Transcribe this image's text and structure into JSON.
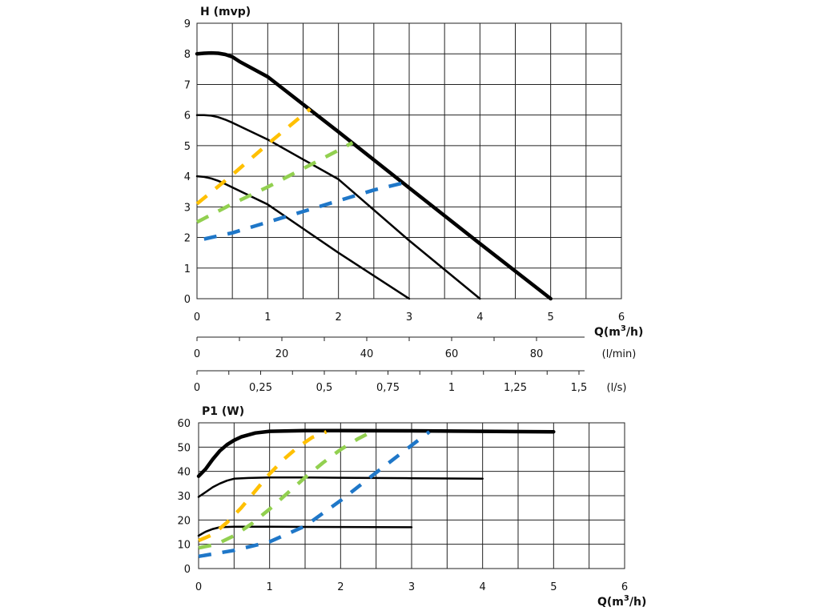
{
  "chart_data": [
    {
      "type": "line",
      "ylabel": "H (mvp)",
      "xlabel_prefix": "Q(m",
      "xlabel_sup": "3",
      "xlabel_suffix": "/h)",
      "xlim": [
        0,
        6
      ],
      "ylim": [
        0,
        9
      ],
      "x_ticks": [
        "0",
        "1",
        "2",
        "3",
        "4",
        "5",
        "6"
      ],
      "y_ticks": [
        "0",
        "1",
        "2",
        "3",
        "4",
        "5",
        "6",
        "7",
        "8",
        "9"
      ],
      "grid": true,
      "secondary_axes": [
        {
          "unit": "(l/min)",
          "ticks": [
            {
              "value": 0,
              "label": "0"
            },
            {
              "value": 20,
              "label": "20"
            },
            {
              "value": 40,
              "label": "40"
            },
            {
              "value": 60,
              "label": "60"
            },
            {
              "value": 80,
              "label": "80"
            }
          ],
          "factor": 0.06
        },
        {
          "unit": "(l/s)",
          "ticks": [
            {
              "value": 0,
              "label": "0"
            },
            {
              "value": 0.25,
              "label": "0,25"
            },
            {
              "value": 0.5,
              "label": "0,5"
            },
            {
              "value": 0.75,
              "label": "0,75"
            },
            {
              "value": 1,
              "label": "1"
            },
            {
              "value": 1.25,
              "label": "1,25"
            },
            {
              "value": 1.5,
              "label": "1,5"
            }
          ],
          "factor": 3.6
        }
      ],
      "series": [
        {
          "color": "#000000",
          "style": "solid",
          "width": 4.5,
          "x": [
            0,
            0.1,
            0.2,
            0.3,
            0.4,
            0.5,
            0.6,
            1,
            2,
            3,
            4,
            5
          ],
          "y": [
            8.0,
            8.02,
            8.03,
            8.02,
            7.98,
            7.9,
            7.75,
            7.25,
            5.45,
            3.62,
            1.8,
            0
          ]
        },
        {
          "color": "#000000",
          "style": "solid",
          "width": 2.5,
          "x": [
            0,
            0.1,
            0.2,
            0.3,
            0.4,
            0.5,
            1,
            2,
            3,
            4
          ],
          "y": [
            6.0,
            6.0,
            5.98,
            5.93,
            5.85,
            5.75,
            5.2,
            3.9,
            1.9,
            0
          ]
        },
        {
          "color": "#000000",
          "style": "solid",
          "width": 2.5,
          "x": [
            0,
            0.1,
            0.2,
            0.3,
            0.4,
            1,
            2,
            3
          ],
          "y": [
            4.0,
            3.98,
            3.93,
            3.85,
            3.75,
            3.08,
            1.5,
            0
          ]
        },
        {
          "color": "#ffc000",
          "style": "dashed",
          "width": 4.5,
          "x": [
            0,
            0.5,
            1,
            1.6
          ],
          "y": [
            3.1,
            4.05,
            5.05,
            6.2
          ]
        },
        {
          "color": "#92d050",
          "style": "dashed",
          "width": 4.5,
          "x": [
            0,
            0.5,
            1,
            1.5,
            2,
            2.2
          ],
          "y": [
            2.5,
            3.1,
            3.65,
            4.25,
            4.85,
            5.1
          ]
        },
        {
          "color": "#1f77c8",
          "style": "dashed",
          "width": 4.5,
          "x": [
            0.1,
            0.5,
            1,
            1.5,
            2,
            2.5,
            2.95
          ],
          "y": [
            1.95,
            2.15,
            2.5,
            2.85,
            3.2,
            3.55,
            3.8
          ]
        }
      ]
    },
    {
      "type": "line",
      "ylabel": "P1 (W)",
      "xlabel_prefix": "Q(m",
      "xlabel_sup": "3",
      "xlabel_suffix": "/h)",
      "xlim": [
        0,
        6
      ],
      "ylim": [
        0,
        60
      ],
      "x_ticks": [
        "0",
        "1",
        "2",
        "3",
        "4",
        "5",
        "6"
      ],
      "y_ticks": [
        "0",
        "10",
        "20",
        "30",
        "40",
        "50",
        "60"
      ],
      "grid": true,
      "series": [
        {
          "color": "#000000",
          "style": "solid",
          "width": 4.5,
          "x": [
            0,
            0.1,
            0.2,
            0.3,
            0.4,
            0.5,
            0.6,
            0.8,
            1,
            1.5,
            2,
            3,
            4,
            5
          ],
          "y": [
            38,
            41,
            45,
            48.5,
            51,
            52.8,
            54.2,
            55.8,
            56.5,
            56.8,
            56.8,
            56.7,
            56.5,
            56.3
          ]
        },
        {
          "color": "#000000",
          "style": "solid",
          "width": 2.5,
          "x": [
            0,
            0.1,
            0.2,
            0.3,
            0.4,
            0.5,
            0.7,
            1,
            1.5,
            2,
            3,
            4
          ],
          "y": [
            29.5,
            31.5,
            33.5,
            35,
            36.2,
            37,
            37.3,
            37.5,
            37.5,
            37.4,
            37.2,
            37.0
          ]
        },
        {
          "color": "#000000",
          "style": "solid",
          "width": 2.5,
          "x": [
            0,
            0.1,
            0.2,
            0.3,
            0.5,
            1,
            2,
            3
          ],
          "y": [
            13.5,
            15.2,
            16.3,
            17,
            17.2,
            17.2,
            17.1,
            17.0
          ]
        },
        {
          "color": "#ffc000",
          "style": "dashed",
          "width": 4.5,
          "x": [
            0,
            0.2,
            0.4,
            0.6,
            0.8,
            1,
            1.2,
            1.4,
            1.6,
            1.8
          ],
          "y": [
            11.5,
            14,
            19,
            25,
            32,
            39,
            45,
            50,
            54,
            56.3
          ]
        },
        {
          "color": "#92d050",
          "style": "dashed",
          "width": 4.5,
          "x": [
            0,
            0.25,
            0.5,
            0.75,
            1,
            1.25,
            1.5,
            1.75,
            2,
            2.25,
            2.45
          ],
          "y": [
            8.5,
            10,
            13.5,
            18.5,
            24.5,
            31,
            37.5,
            43.5,
            49,
            53.5,
            56.5
          ]
        },
        {
          "color": "#1f77c8",
          "style": "dashed",
          "width": 4.5,
          "x": [
            0,
            0.5,
            1,
            1.5,
            2,
            2.5,
            2.9,
            3.25
          ],
          "y": [
            5,
            7.5,
            11,
            17.5,
            28,
            39.5,
            48.5,
            56.3
          ]
        }
      ]
    }
  ]
}
